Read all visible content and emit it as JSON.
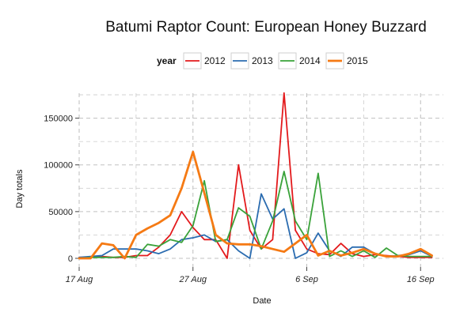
{
  "chart_data": {
    "type": "line",
    "title": "Batumi Raptor Count: European Honey Buzzard",
    "xlabel": "Date",
    "ylabel": "Day totals",
    "legend_title": "year",
    "legend_position": "top",
    "grid": true,
    "xlim": [
      "2014-08-17",
      "2014-09-18"
    ],
    "ylim": [
      0,
      175000
    ],
    "x_ticks": [
      {
        "date": "2014-08-17",
        "label": "17 Aug"
      },
      {
        "date": "2014-08-27",
        "label": "27 Aug"
      },
      {
        "date": "2014-09-06",
        "label": "6 Sep"
      },
      {
        "date": "2014-09-16",
        "label": "16 Sep"
      }
    ],
    "y_ticks": [
      0,
      50000,
      100000,
      150000
    ],
    "y_tick_labels": [
      "0",
      "50000",
      "100000",
      "150000"
    ],
    "series": [
      {
        "name": "2012",
        "color": "#e31a1c",
        "x": [
          "2014-08-17",
          "2014-08-18",
          "2014-08-19",
          "2014-08-20",
          "2014-08-21",
          "2014-08-22",
          "2014-08-23",
          "2014-08-24",
          "2014-08-25",
          "2014-08-26",
          "2014-08-27",
          "2014-08-28",
          "2014-08-29",
          "2014-08-30",
          "2014-08-31",
          "2014-09-01",
          "2014-09-02",
          "2014-09-03",
          "2014-09-04",
          "2014-09-05",
          "2014-09-06",
          "2014-09-07",
          "2014-09-08",
          "2014-09-09",
          "2014-09-10",
          "2014-09-11",
          "2014-09-12",
          "2014-09-13",
          "2014-09-14",
          "2014-09-15",
          "2014-09-16",
          "2014-09-17"
        ],
        "values": [
          1000,
          1000,
          2000,
          1000,
          1000,
          3000,
          3000,
          12000,
          25000,
          50000,
          33000,
          20000,
          20000,
          0,
          100000,
          30000,
          10000,
          20000,
          177000,
          30000,
          10000,
          5000,
          4000,
          16000,
          5000,
          2000,
          4000,
          3000,
          2000,
          1000,
          1000,
          1000
        ]
      },
      {
        "name": "2013",
        "color": "#2b6cb0",
        "x": [
          "2014-08-17",
          "2014-08-18",
          "2014-08-19",
          "2014-08-20",
          "2014-08-21",
          "2014-08-22",
          "2014-08-23",
          "2014-08-24",
          "2014-08-25",
          "2014-08-26",
          "2014-08-27",
          "2014-08-28",
          "2014-08-29",
          "2014-08-30",
          "2014-08-31",
          "2014-09-01",
          "2014-09-02",
          "2014-09-03",
          "2014-09-04",
          "2014-09-05",
          "2014-09-06",
          "2014-09-07",
          "2014-09-08",
          "2014-09-09",
          "2014-09-10",
          "2014-09-11",
          "2014-09-12",
          "2014-09-13",
          "2014-09-14",
          "2014-09-15",
          "2014-09-16",
          "2014-09-17"
        ],
        "values": [
          1000,
          2000,
          3000,
          10000,
          10000,
          10000,
          8000,
          5000,
          10000,
          20000,
          22000,
          25000,
          18000,
          20000,
          8000,
          0,
          69000,
          42000,
          53000,
          0,
          6000,
          27000,
          8000,
          2000,
          12000,
          12000,
          5000,
          2000,
          3000,
          4000,
          8000,
          2000
        ]
      },
      {
        "name": "2014",
        "color": "#3aa23a",
        "x": [
          "2014-08-17",
          "2014-08-18",
          "2014-08-19",
          "2014-08-20",
          "2014-08-21",
          "2014-08-22",
          "2014-08-23",
          "2014-08-24",
          "2014-08-25",
          "2014-08-26",
          "2014-08-27",
          "2014-08-28",
          "2014-08-29",
          "2014-08-30",
          "2014-08-31",
          "2014-09-01",
          "2014-09-02",
          "2014-09-03",
          "2014-09-04",
          "2014-09-05",
          "2014-09-06",
          "2014-09-07",
          "2014-09-08",
          "2014-09-09",
          "2014-09-10",
          "2014-09-11",
          "2014-09-12",
          "2014-09-13",
          "2014-09-14",
          "2014-09-15",
          "2014-09-16",
          "2014-09-17"
        ],
        "values": [
          0,
          1000,
          1000,
          1000,
          2000,
          1000,
          15000,
          13000,
          20000,
          17000,
          35000,
          83000,
          18000,
          20000,
          54000,
          45000,
          10000,
          40000,
          93000,
          40000,
          20000,
          91000,
          2000,
          8000,
          2000,
          8000,
          1000,
          11000,
          3000,
          2000,
          2000,
          2000
        ]
      },
      {
        "name": "2015",
        "color": "#f57a14",
        "x": [
          "2014-08-17",
          "2014-08-18",
          "2014-08-19",
          "2014-08-20",
          "2014-08-21",
          "2014-08-22",
          "2014-08-23",
          "2014-08-24",
          "2014-08-25",
          "2014-08-26",
          "2014-08-27",
          "2014-08-28",
          "2014-08-29",
          "2014-08-30",
          "2014-08-31",
          "2014-09-01",
          "2014-09-02",
          "2014-09-03",
          "2014-09-04",
          "2014-09-05",
          "2014-09-06",
          "2014-09-07",
          "2014-09-08",
          "2014-09-09",
          "2014-09-10",
          "2014-09-11",
          "2014-09-12",
          "2014-09-13",
          "2014-09-14",
          "2014-09-15",
          "2014-09-16",
          "2014-09-17"
        ],
        "values": [
          0,
          0,
          16000,
          14000,
          0,
          25000,
          32000,
          38000,
          46000,
          75000,
          114000,
          70000,
          25000,
          16000,
          15000,
          15000,
          13000,
          10000,
          7000,
          16000,
          25000,
          3000,
          8000,
          3000,
          6000,
          10000,
          5000,
          2000,
          2000,
          5000,
          10000,
          3000
        ]
      }
    ]
  }
}
